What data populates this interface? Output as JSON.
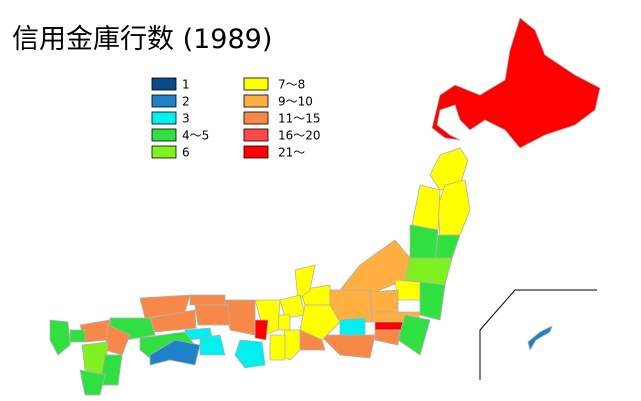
{
  "title": "信用金庫行数 (1989)",
  "legend": [
    {
      "label": "1",
      "color": "#0a4a8c"
    },
    {
      "label": "2",
      "color": "#1e82c8"
    },
    {
      "label": "3",
      "color": "#00f0f0"
    },
    {
      "label": "4～5",
      "color": "#30e040"
    },
    {
      "label": "6",
      "color": "#80f020"
    },
    {
      "label": "7～8",
      "color": "#ffff00"
    },
    {
      "label": "9～10",
      "color": "#ffb040"
    },
    {
      "label": "11～15",
      "color": "#f88848"
    },
    {
      "label": "16～20",
      "color": "#ff4848"
    },
    {
      "label": "21～",
      "color": "#ff0000"
    }
  ]
}
